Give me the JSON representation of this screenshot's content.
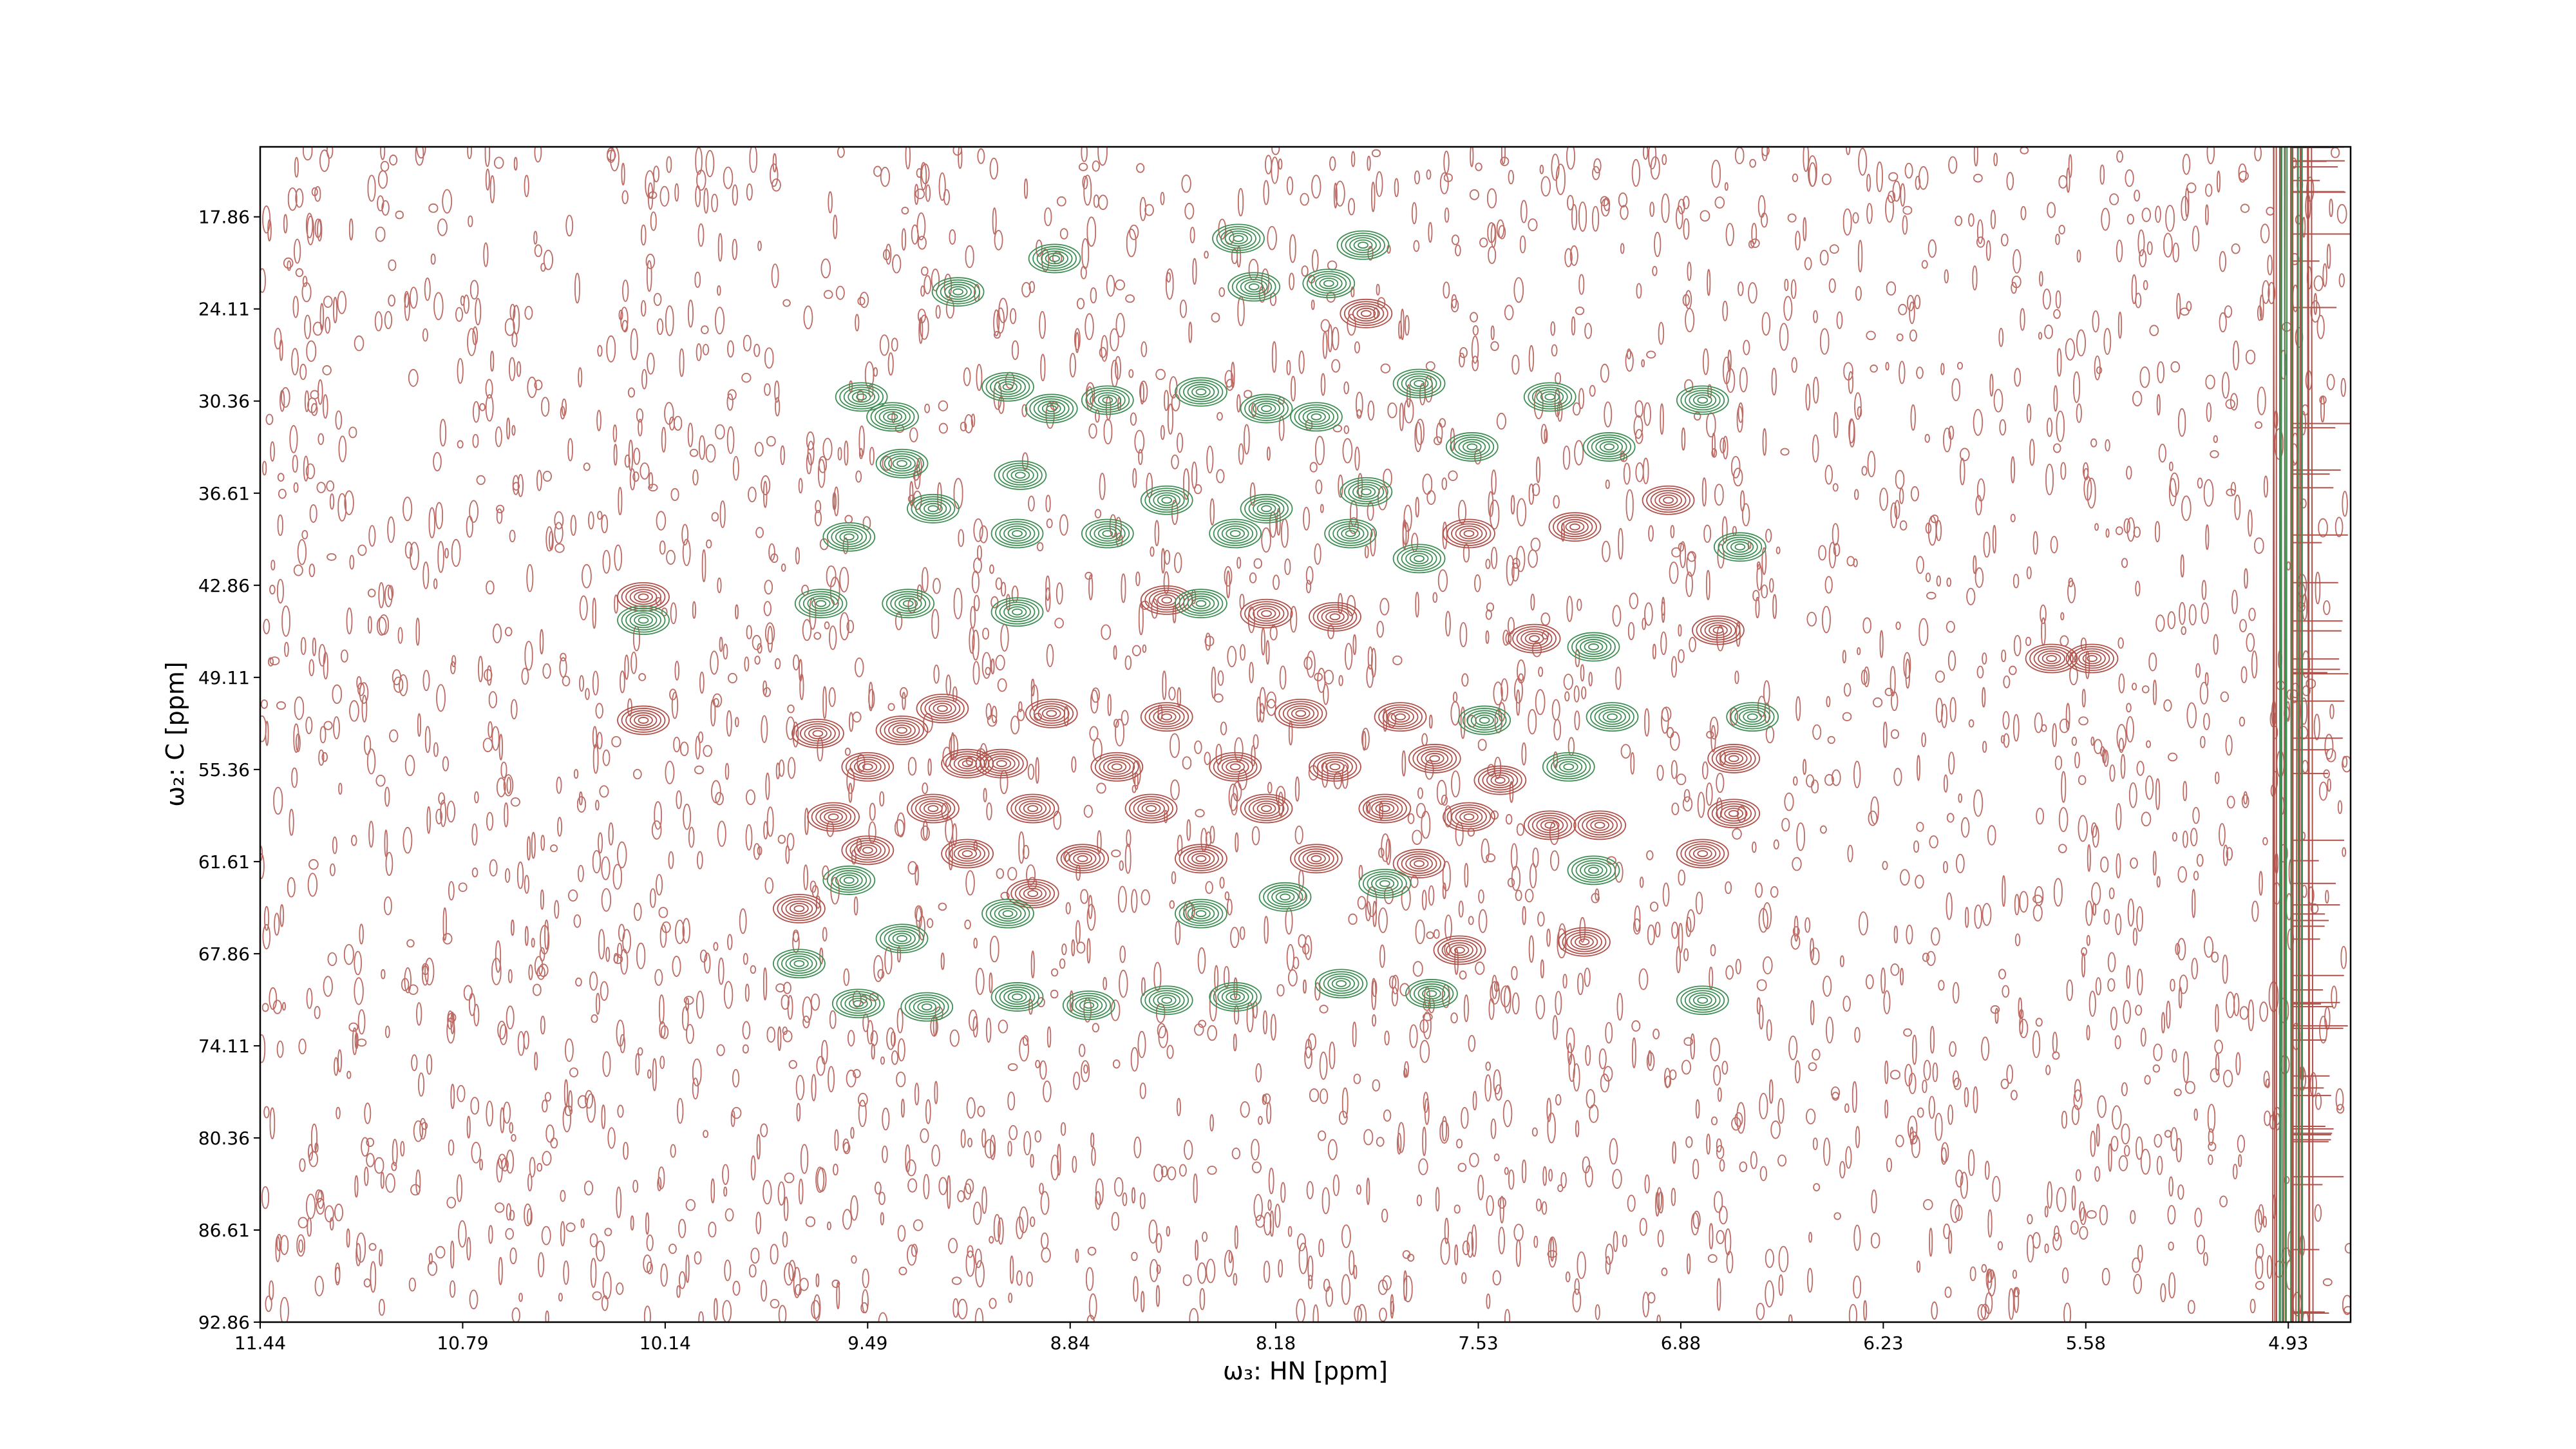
{
  "chart_data": {
    "type": "contour",
    "xlabel": "ω₃: HN [ppm]",
    "ylabel": "ω₂: C [ppm]",
    "xlim": [
      11.44,
      4.73
    ],
    "ylim": [
      92.86,
      13.11
    ],
    "xticks": [
      11.44,
      10.79,
      10.14,
      9.49,
      8.84,
      8.18,
      7.53,
      6.88,
      6.23,
      5.58,
      4.93
    ],
    "yticks": [
      17.86,
      24.11,
      30.36,
      36.61,
      42.86,
      49.11,
      55.36,
      61.61,
      67.86,
      74.11,
      80.36,
      86.61,
      92.86
    ],
    "series": [
      {
        "color": "#b0514a",
        "x": [
          9.65,
          9.25,
          8.9,
          8.53,
          8.1,
          7.78,
          9.49,
          9.06,
          8.69,
          8.31,
          7.99,
          7.67,
          9.6,
          9.28,
          8.96,
          8.58,
          8.21,
          7.83,
          7.56,
          6.71,
          6.71,
          9.49,
          9.17,
          8.8,
          8.42,
          8.05,
          7.72,
          7.3,
          7.14,
          6.81,
          7.46,
          7.89,
          8.21,
          7.99,
          7.35,
          6.76,
          7.56,
          7.22,
          6.92,
          10.21,
          8.53,
          9.71,
          8.96,
          7.59,
          7.19,
          5.69,
          5.56,
          10.21,
          9.38,
          9.17
        ],
        "y": [
          52.92,
          51.22,
          51.56,
          51.79,
          51.56,
          51.79,
          55.18,
          54.96,
          55.18,
          55.18,
          55.18,
          54.62,
          58.58,
          58.01,
          58.01,
          58.01,
          58.01,
          58.01,
          58.58,
          54.62,
          58.35,
          60.84,
          61.07,
          61.41,
          61.41,
          61.41,
          61.75,
          59.14,
          59.14,
          61.07,
          56.09,
          24.42,
          44.78,
          45.0,
          46.48,
          45.91,
          39.35,
          38.9,
          37.09,
          52.02,
          43.87,
          64.8,
          63.78,
          67.62,
          67.06,
          47.83,
          47.83,
          43.65,
          52.7,
          54.96
        ]
      },
      {
        "color": "#3f8f55",
        "x": [
          8.89,
          8.3,
          7.9,
          8.25,
          8.01,
          9.2,
          9.51,
          9.41,
          9.04,
          8.9,
          8.72,
          8.42,
          8.21,
          8.05,
          7.72,
          7.3,
          7.11,
          6.81,
          9.38,
          9.0,
          8.53,
          8.21,
          7.89,
          7.55,
          9.28,
          9.55,
          9.01,
          8.72,
          8.31,
          7.94,
          7.72,
          6.69,
          9.64,
          9.36,
          9.01,
          8.42,
          7.16,
          7.51,
          7.1,
          6.65,
          9.55,
          9.38,
          9.04,
          8.42,
          8.15,
          7.83,
          7.16,
          9.71,
          9.52,
          9.3,
          9.01,
          8.78,
          8.53,
          8.31,
          7.97,
          7.68,
          6.81,
          10.21,
          7.24
        ],
        "y": [
          20.69,
          19.33,
          19.78,
          22.61,
          22.38,
          22.95,
          30.08,
          31.43,
          29.4,
          30.87,
          30.3,
          29.74,
          30.87,
          31.43,
          29.17,
          30.08,
          33.47,
          30.3,
          34.6,
          35.39,
          37.09,
          37.66,
          36.52,
          33.47,
          37.66,
          39.58,
          39.35,
          39.35,
          39.35,
          39.35,
          41.05,
          40.26,
          44.1,
          44.1,
          44.67,
          44.1,
          47.04,
          52.02,
          51.79,
          51.79,
          62.88,
          66.83,
          65.14,
          65.14,
          64.01,
          63.1,
          62.2,
          68.53,
          71.24,
          71.47,
          70.79,
          71.36,
          71.02,
          70.79,
          69.89,
          70.57,
          71.02,
          45.23,
          55.18
        ]
      }
    ]
  }
}
